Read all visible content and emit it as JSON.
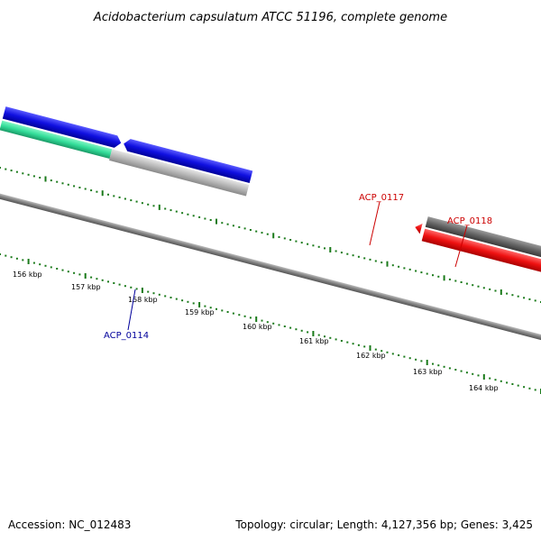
{
  "title": "Acidobacterium capsulatum ATCC 51196, complete genome",
  "footer": {
    "accession": "Accession: NC_012483",
    "summary": "Topology: circular; Length: 4,127,356 bp; Genes: 3,425"
  },
  "ticks": [
    {
      "label": "156 kbp"
    },
    {
      "label": "157 kbp"
    },
    {
      "label": "158 kbp"
    },
    {
      "label": "159 kbp"
    },
    {
      "label": "160 kbp"
    },
    {
      "label": "161 kbp"
    },
    {
      "label": "162 kbp"
    },
    {
      "label": "163 kbp"
    },
    {
      "label": "164 kbp"
    }
  ],
  "gene_labels": [
    {
      "name": "ACP_0114",
      "color": "#00009b"
    },
    {
      "name": "ACP_0117",
      "color": "#cc0000"
    },
    {
      "name": "ACP_0118",
      "color": "#cc0000"
    }
  ],
  "colors": {
    "forward_cds": "#1010e0",
    "reverse_cds": "#b8b8b8",
    "highlight_red": "#ee1111",
    "highlight_grey": "#666666",
    "green_feature": "#33dd99",
    "tick_green": "#1a7a1a",
    "backbone": "#808080"
  }
}
